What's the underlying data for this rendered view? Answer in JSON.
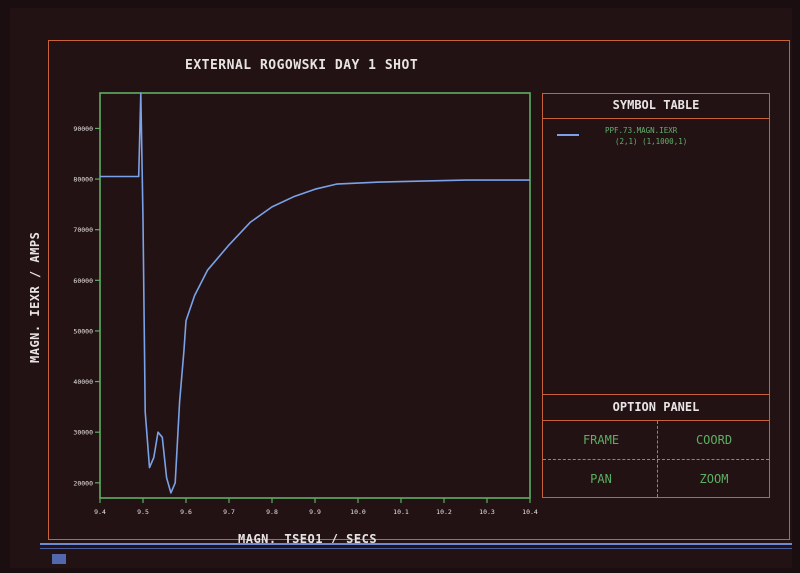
{
  "title": "EXTERNAL ROGOWSKI DAY 1 SHOT",
  "symbol_table": {
    "heading": "SYMBOL TABLE",
    "entry_line1": "PPF.73.MAGN.IEXR",
    "entry_line2": "(2,1) (1,1000,1)"
  },
  "option_panel": {
    "heading": "OPTION PANEL",
    "buttons": {
      "frame": "FRAME",
      "coord": "COORD",
      "pan": "PAN",
      "zoom": "ZOOM"
    }
  },
  "colors": {
    "frame": "#c8623a",
    "plot_box": "#5fae62",
    "trace": "#7aa2e8",
    "option_text": "#5cae62"
  },
  "chart_data": {
    "type": "line",
    "title": "EXTERNAL ROGOWSKI DAY 1 SHOT",
    "xlabel": "MAGN. TSEQ1 / SECS",
    "ylabel": "MAGN. IEXR / AMPS",
    "x_ticks": [
      "9.4",
      "9.5",
      "9.6",
      "9.7",
      "9.8",
      "9.9",
      "10.0",
      "10.1",
      "10.2",
      "10.3",
      "10.4"
    ],
    "y_ticks": [
      "20000",
      "30000",
      "40000",
      "50000",
      "60000",
      "70000",
      "80000",
      "90000"
    ],
    "xlim": [
      9.4,
      10.4
    ],
    "ylim": [
      17000,
      97000
    ],
    "grid": false,
    "series": [
      {
        "name": "PPF.73.MAGN.IEXR",
        "x": [
          9.4,
          9.45,
          9.49,
          9.495,
          9.5,
          9.505,
          9.515,
          9.525,
          9.535,
          9.545,
          9.555,
          9.565,
          9.575,
          9.585,
          9.595,
          9.6,
          9.62,
          9.65,
          9.7,
          9.75,
          9.8,
          9.85,
          9.9,
          9.95,
          10.0,
          10.05,
          10.1,
          10.15,
          10.2,
          10.25,
          10.3,
          10.35,
          10.4
        ],
        "y": [
          80500,
          80500,
          80500,
          97000,
          72000,
          34000,
          23000,
          25000,
          30000,
          29000,
          21000,
          18000,
          20000,
          36000,
          46000,
          52000,
          57000,
          62000,
          67000,
          71500,
          74500,
          76500,
          78000,
          79000,
          79200,
          79400,
          79500,
          79600,
          79700,
          79800,
          79800,
          79800,
          79800
        ]
      }
    ]
  }
}
